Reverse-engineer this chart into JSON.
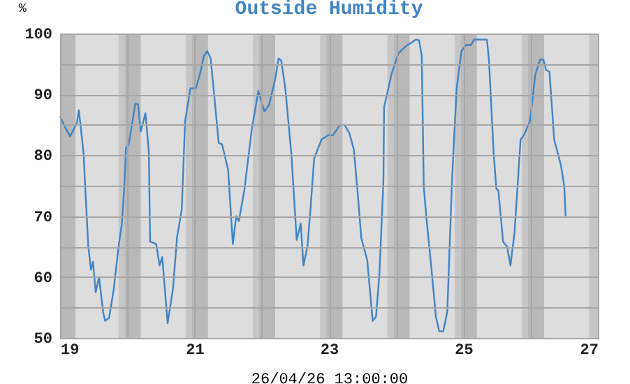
{
  "chart_data": {
    "type": "line",
    "title": "Outside Humidity",
    "xlabel": "26/04/26 13:00:00",
    "ylabel": "%",
    "series": [
      {
        "color": "#3f84c4",
        "x": [
          19.0,
          19.08,
          19.15,
          19.25,
          19.28,
          19.35,
          19.37,
          19.42,
          19.46,
          19.49,
          19.53,
          19.58,
          19.64,
          19.67,
          19.73,
          19.8,
          19.87,
          19.92,
          19.96,
          19.98,
          20.02,
          20.12,
          20.16,
          20.2,
          20.27,
          20.32,
          20.34,
          20.39,
          20.43,
          20.48,
          20.52,
          20.6,
          20.68,
          20.74,
          20.81,
          20.86,
          20.94,
          21.02,
          21.08,
          21.14,
          21.19,
          21.24,
          21.29,
          21.36,
          21.41,
          21.5,
          21.57,
          21.62,
          21.66,
          21.74,
          21.85,
          21.95,
          22.04,
          22.11,
          22.2,
          22.25,
          22.29,
          22.35,
          22.44,
          22.52,
          22.58,
          22.62,
          22.68,
          22.73,
          22.78,
          22.89,
          22.99,
          23.06,
          23.16,
          23.23,
          23.3,
          23.37,
          23.43,
          23.48,
          23.57,
          23.65,
          23.7,
          23.75,
          23.81,
          23.82,
          23.93,
          24.03,
          24.14,
          24.24,
          24.29,
          24.34,
          24.38,
          24.41,
          24.45,
          24.52,
          24.59,
          24.64,
          24.7,
          24.76,
          24.83,
          24.86,
          24.9,
          24.97,
          25.04,
          25.11,
          25.16,
          25.35,
          25.38,
          25.45,
          25.49,
          25.52,
          25.59,
          25.65,
          25.7,
          25.76,
          25.81,
          25.85,
          25.9,
          25.99,
          26.07,
          26.14,
          26.19,
          26.23,
          26.28,
          26.35,
          26.45,
          26.5,
          26.52
        ],
        "values": [
          86.4,
          84.5,
          83.1,
          85.3,
          87.4,
          80.3,
          75.7,
          65,
          61.2,
          62.5,
          57.5,
          60,
          54.3,
          52.8,
          53.3,
          58.1,
          65,
          68.8,
          75.7,
          81.2,
          81.6,
          88.5,
          88.4,
          83.9,
          86.9,
          80.7,
          65.8,
          65.6,
          65.4,
          61.9,
          63.3,
          52.4,
          58.1,
          66.5,
          71.1,
          85.6,
          91,
          91,
          93.3,
          96.3,
          97.1,
          95.9,
          90.2,
          82,
          81.8,
          77.6,
          65.4,
          70,
          69.2,
          74.2,
          84.1,
          90.6,
          87.2,
          88.3,
          92.5,
          95.9,
          95.6,
          91,
          80.3,
          66.1,
          68.8,
          61.9,
          65,
          71.9,
          79.5,
          82.6,
          83.3,
          83.3,
          84.9,
          85,
          83.7,
          81,
          73.4,
          66.5,
          62.7,
          52.8,
          53.5,
          60.4,
          75.7,
          87.9,
          93.3,
          96.7,
          97.9,
          98.6,
          99,
          98.9,
          96.3,
          74.9,
          69.6,
          61.9,
          53.5,
          51.1,
          51.1,
          54.3,
          75.7,
          82.6,
          91,
          97.1,
          98.1,
          98.1,
          99,
          99,
          95.6,
          80.3,
          74.5,
          74.2,
          65.8,
          65,
          61.9,
          67.3,
          75.7,
          82.6,
          83.3,
          85.6,
          93.3,
          95.7,
          95.7,
          94,
          93.7,
          82.6,
          78.4,
          74.9,
          70
        ]
      }
    ],
    "xlim": [
      19,
      27
    ],
    "xticks": [
      19,
      {
        "value": 20,
        "label": null
      },
      21,
      {
        "value": 22,
        "label": null
      },
      23,
      {
        "value": 24,
        "label": null
      },
      25,
      {
        "value": 26,
        "label": null
      },
      27
    ],
    "ylim": [
      50,
      100
    ],
    "yticks": [
      50,
      {
        "value": 55,
        "label": null
      },
      60,
      {
        "value": 65,
        "label": null
      },
      70,
      {
        "value": 75,
        "label": null
      },
      80,
      {
        "value": 85,
        "label": null
      },
      90,
      {
        "value": 95,
        "label": null
      },
      100
    ],
    "grid": true,
    "marker": "none",
    "line_style": "solid",
    "bands": [
      {
        "axis": "x",
        "from": 19.0,
        "to": 19.23,
        "color": "#b9b9b9"
      },
      {
        "axis": "x",
        "from": 19.87,
        "to": 19.96,
        "color": "#c6c6c6"
      },
      {
        "axis": "x",
        "from": 19.96,
        "to": 20.2,
        "color": "#b9b9b9"
      },
      {
        "axis": "x",
        "from": 20.87,
        "to": 20.96,
        "color": "#c6c6c6"
      },
      {
        "axis": "x",
        "from": 20.96,
        "to": 21.2,
        "color": "#b9b9b9"
      },
      {
        "axis": "x",
        "from": 21.87,
        "to": 21.96,
        "color": "#c6c6c6"
      },
      {
        "axis": "x",
        "from": 21.96,
        "to": 22.2,
        "color": "#b9b9b9"
      },
      {
        "axis": "x",
        "from": 22.87,
        "to": 22.96,
        "color": "#c6c6c6"
      },
      {
        "axis": "x",
        "from": 22.96,
        "to": 23.2,
        "color": "#b9b9b9"
      },
      {
        "axis": "x",
        "from": 23.87,
        "to": 23.96,
        "color": "#c6c6c6"
      },
      {
        "axis": "x",
        "from": 23.96,
        "to": 24.2,
        "color": "#b9b9b9"
      },
      {
        "axis": "x",
        "from": 24.87,
        "to": 24.96,
        "color": "#c6c6c6"
      },
      {
        "axis": "x",
        "from": 24.96,
        "to": 25.2,
        "color": "#b9b9b9"
      },
      {
        "axis": "x",
        "from": 25.87,
        "to": 25.96,
        "color": "#c6c6c6"
      },
      {
        "axis": "x",
        "from": 25.96,
        "to": 26.2,
        "color": "#b9b9b9"
      },
      {
        "axis": "x",
        "from": 26.87,
        "to": 27.0,
        "color": "#c6c6c6"
      }
    ]
  }
}
